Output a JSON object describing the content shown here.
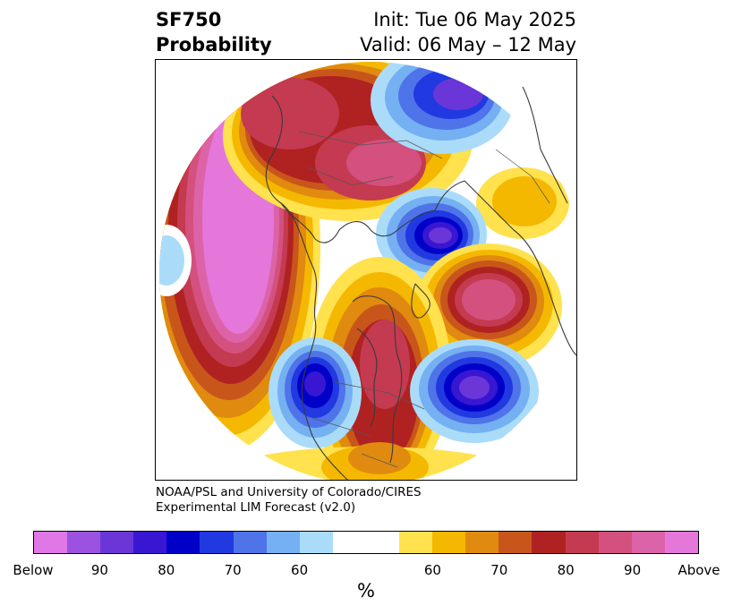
{
  "title": {
    "line1_left": "SF750",
    "line2_left": "Probability",
    "line1_right": "Init: Tue 06 May 2025",
    "line2_right": "Valid: 06 May – 12 May"
  },
  "credit": {
    "line1": "NOAA/PSL and University of Colorado/CIRES",
    "line2": "Experimental LIM Forecast (v2.0)"
  },
  "colorbar": {
    "colors": [
      "#e077e6",
      "#9b52e0",
      "#6a36d8",
      "#3916d2",
      "#0000c8",
      "#2139e0",
      "#4f73e8",
      "#74b0f2",
      "#aadcfa",
      "#ffffff",
      "#ffe24d",
      "#f5b800",
      "#e08a10",
      "#c8561a",
      "#b02222",
      "#c43a50",
      "#d4507e",
      "#dc63a8",
      "#e577db"
    ],
    "tick_labels": [
      "Below",
      "90",
      "80",
      "70",
      "60",
      "60",
      "70",
      "80",
      "90",
      "Above"
    ],
    "unit": "%"
  }
}
